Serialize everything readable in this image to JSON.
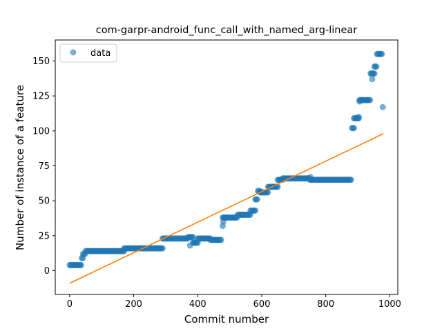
{
  "chart_data": {
    "type": "scatter",
    "title": "com-garpr-android_func_call_with_named_arg-linear",
    "xlabel": "Commit number",
    "ylabel": "Number of instance of a feature",
    "xlim": [
      -45,
      1025
    ],
    "ylim": [
      -17,
      165
    ],
    "xticks": [
      0,
      200,
      400,
      600,
      800,
      1000
    ],
    "yticks": [
      0,
      25,
      50,
      75,
      100,
      125,
      150
    ],
    "xtick_labels": [
      "0",
      "200",
      "400",
      "600",
      "800",
      "1000"
    ],
    "ytick_labels": [
      "0",
      "25",
      "50",
      "75",
      "100",
      "125",
      "150"
    ],
    "grid": false,
    "legend": {
      "placement": "upper-left",
      "entries": [
        "data"
      ]
    },
    "colors": {
      "data": "#1f77b4",
      "fit": "#ff7f0e"
    },
    "series": [
      {
        "name": "data",
        "kind": "scatter",
        "segments": [
          {
            "x_start": 0,
            "x_end": 38,
            "y": 4
          },
          {
            "x_start": 38,
            "x_end": 42,
            "y": 9
          },
          {
            "x_start": 42,
            "x_end": 50,
            "y": 12
          },
          {
            "x_start": 50,
            "x_end": 170,
            "y": 14
          },
          {
            "x_start": 170,
            "x_end": 290,
            "y": 16
          },
          {
            "x_start": 290,
            "x_end": 370,
            "y": 23
          },
          {
            "x_start": 370,
            "x_end": 385,
            "y": 24
          },
          {
            "x_start": 385,
            "x_end": 400,
            "y": 20
          },
          {
            "x_start": 400,
            "x_end": 440,
            "y": 23
          },
          {
            "x_start": 440,
            "x_end": 475,
            "y": 22
          },
          {
            "x_start": 478,
            "x_end": 525,
            "y": 38
          },
          {
            "x_start": 525,
            "x_end": 565,
            "y": 40
          },
          {
            "x_start": 565,
            "x_end": 580,
            "y": 43
          },
          {
            "x_start": 580,
            "x_end": 588,
            "y": 51
          },
          {
            "x_start": 588,
            "x_end": 595,
            "y": 57
          },
          {
            "x_start": 595,
            "x_end": 620,
            "y": 56
          },
          {
            "x_start": 620,
            "x_end": 650,
            "y": 60
          },
          {
            "x_start": 650,
            "x_end": 665,
            "y": 65
          },
          {
            "x_start": 665,
            "x_end": 750,
            "y": 66
          },
          {
            "x_start": 750,
            "x_end": 880,
            "y": 65
          },
          {
            "x_start": 882,
            "x_end": 888,
            "y": 102
          },
          {
            "x_start": 888,
            "x_end": 905,
            "y": 109
          },
          {
            "x_start": 905,
            "x_end": 940,
            "y": 122
          },
          {
            "x_start": 940,
            "x_end": 952,
            "y": 141
          },
          {
            "x_start": 952,
            "x_end": 960,
            "y": 146
          },
          {
            "x_start": 960,
            "x_end": 975,
            "y": 155
          }
        ],
        "points": [
          [
            376,
            18
          ],
          [
            478,
            32
          ],
          [
            480,
            35
          ],
          [
            483,
            38
          ],
          [
            540,
            40
          ],
          [
            598,
            56
          ],
          [
            752,
            67
          ],
          [
            903,
            110
          ],
          [
            906,
            121
          ],
          [
            945,
            137
          ],
          [
            978,
            117
          ]
        ]
      },
      {
        "name": "",
        "kind": "line",
        "x": [
          0,
          980
        ],
        "y": [
          -9,
          98
        ]
      }
    ]
  }
}
